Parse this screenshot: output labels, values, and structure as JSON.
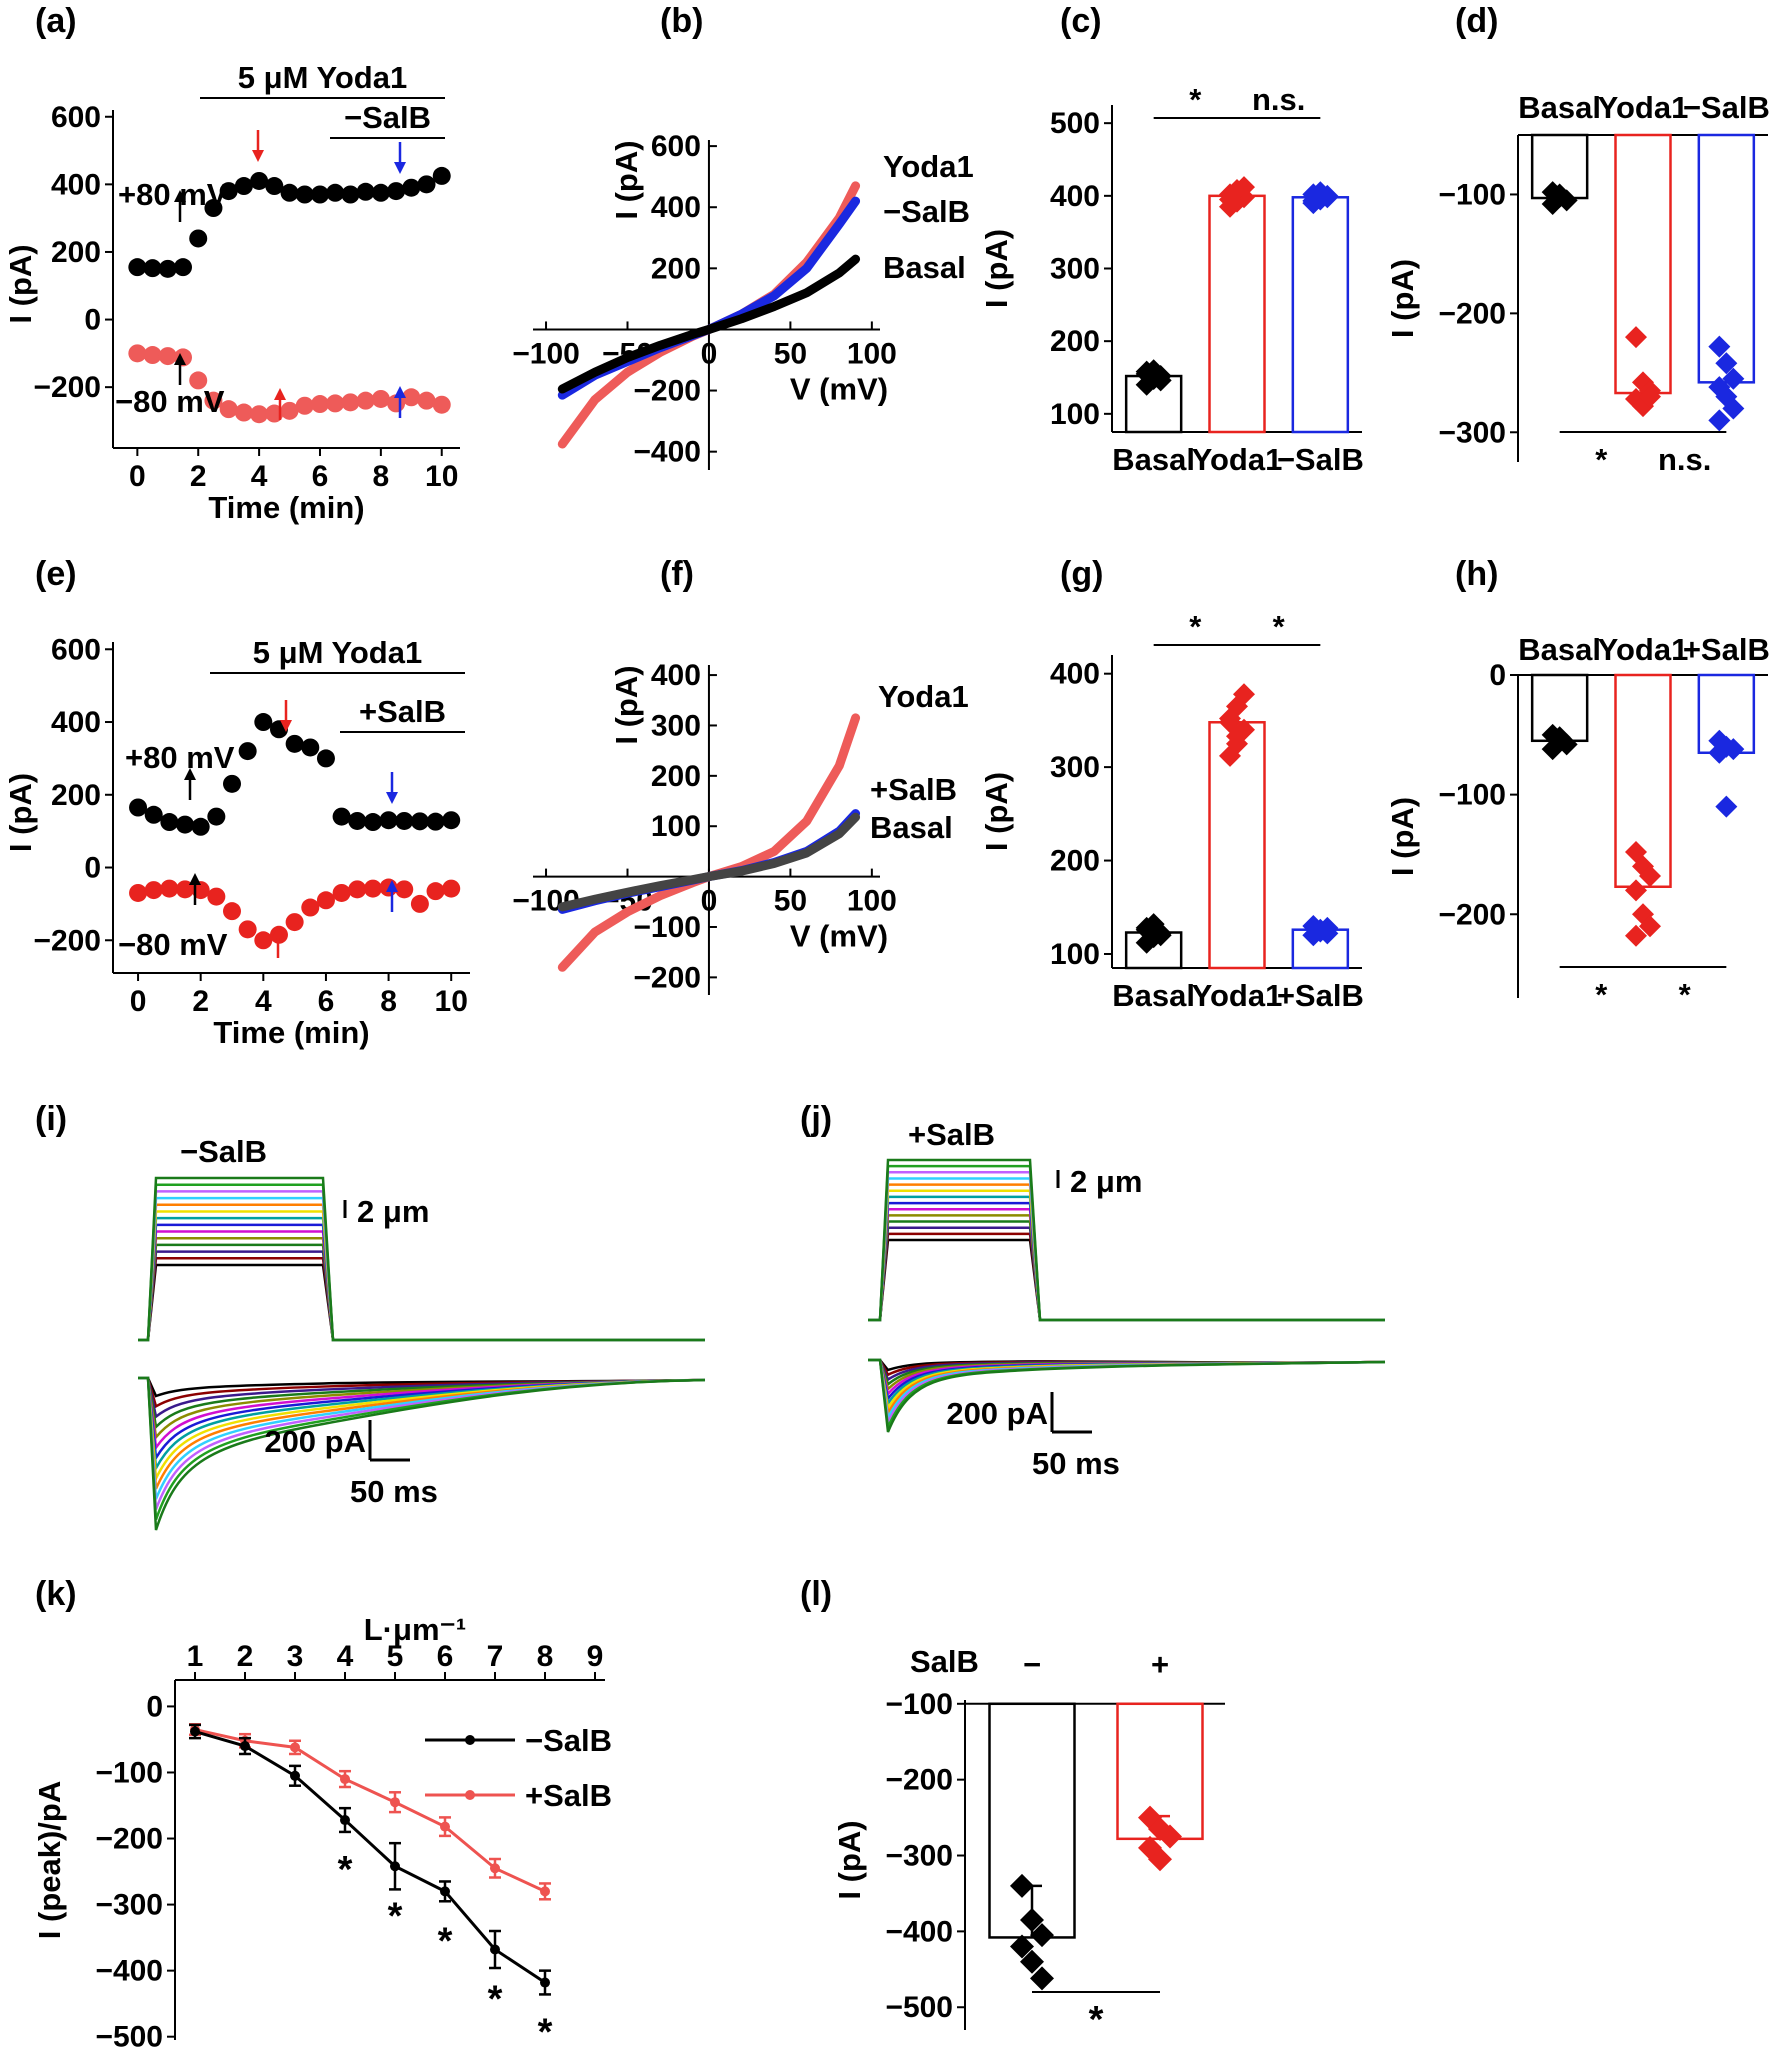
{
  "colors": {
    "basal": "#000000",
    "yoda1": "#e8231f",
    "yoda1_light": "#ee5b59",
    "salb": "#1a28e0",
    "minus_salb_line": "#000000",
    "plus_salb_line": "#ee5350"
  },
  "panels": {
    "a": "(a)",
    "b": "(b)",
    "c": "(c)",
    "d": "(d)",
    "e": "(e)",
    "f": "(f)",
    "g": "(g)",
    "h": "(h)",
    "i": "(i)",
    "j": "(j)",
    "k": "(k)",
    "l": "(l)"
  },
  "chart_data": [
    {
      "id": "a",
      "type": "scatter",
      "xlabel": "Time (min)",
      "ylabel": "I (pA)",
      "xlim": [
        -0.8,
        10.6
      ],
      "ylim": [
        -380,
        620
      ],
      "xticks": [
        0,
        2,
        4,
        6,
        8,
        10
      ],
      "yticks": [
        -200,
        0,
        200,
        400,
        600
      ],
      "annotations": {
        "drug": "5 μM  Yoda1",
        "salb": "−SalB",
        "pos": "+80 mV",
        "neg": "−80 mV"
      },
      "series": [
        {
          "name": "+80 mV",
          "color": "#000000",
          "x": [
            0,
            0.5,
            1,
            1.5,
            2,
            2.5,
            3,
            3.5,
            4,
            4.5,
            5,
            5.5,
            6,
            6.5,
            7,
            7.5,
            8,
            8.5,
            9,
            9.5,
            10
          ],
          "y": [
            155,
            152,
            150,
            155,
            240,
            330,
            380,
            395,
            410,
            395,
            375,
            370,
            370,
            375,
            370,
            378,
            375,
            380,
            390,
            400,
            425
          ]
        },
        {
          "name": "−80 mV",
          "color": "#ee5b59",
          "x": [
            0,
            0.5,
            1,
            1.5,
            2,
            2.5,
            3,
            3.5,
            4,
            4.5,
            5,
            5.5,
            6,
            6.5,
            7,
            7.5,
            8,
            8.5,
            9,
            9.5,
            10
          ],
          "y": [
            -100,
            -105,
            -108,
            -112,
            -180,
            -240,
            -265,
            -275,
            -280,
            -278,
            -270,
            -255,
            -250,
            -248,
            -245,
            -240,
            -235,
            -248,
            -230,
            -240,
            -252
          ]
        }
      ]
    },
    {
      "id": "b",
      "type": "line",
      "xlabel": "V (mV)",
      "ylabel": "I (pA)",
      "xlim": [
        -108,
        105
      ],
      "ylim": [
        -460,
        620
      ],
      "xticks": [
        -100,
        -50,
        0,
        50,
        100
      ],
      "yticks": [
        -400,
        -200,
        200,
        400,
        600
      ],
      "series": [
        {
          "name": "Yoda1",
          "color": "#ee5b59",
          "x": [
            -90,
            -70,
            -50,
            -30,
            -10,
            0,
            20,
            40,
            60,
            80,
            90
          ],
          "y": [
            -375,
            -230,
            -140,
            -75,
            -22,
            0,
            50,
            115,
            220,
            365,
            470
          ]
        },
        {
          "name": "−SalB",
          "color": "#1a28e0",
          "x": [
            -90,
            -70,
            -50,
            -30,
            -10,
            0,
            20,
            40,
            60,
            80,
            90
          ],
          "y": [
            -215,
            -150,
            -105,
            -60,
            -20,
            0,
            50,
            110,
            200,
            345,
            420
          ]
        },
        {
          "name": "Basal",
          "color": "#000000",
          "x": [
            -90,
            -70,
            -50,
            -30,
            -10,
            0,
            20,
            40,
            60,
            80,
            90
          ],
          "y": [
            -195,
            -140,
            -92,
            -52,
            -16,
            0,
            35,
            75,
            120,
            185,
            230
          ]
        }
      ]
    },
    {
      "id": "c",
      "type": "bar",
      "categories": [
        "Basal",
        "Yoda1",
        "−SalB"
      ],
      "values": [
        152,
        400,
        398
      ],
      "points": [
        [
          140,
          148,
          152,
          155,
          160,
          146,
          158
        ],
        [
          385,
          392,
          398,
          402,
          408,
          412,
          395
        ],
        [
          390,
          395,
          398,
          402,
          405,
          400,
          393
        ]
      ],
      "ylabel": "I (pA)",
      "ylim": [
        75,
        525
      ],
      "yticks": [
        100,
        200,
        300,
        400,
        500
      ],
      "significance": [
        "*",
        "n.s."
      ]
    },
    {
      "id": "d",
      "type": "bar",
      "categories": [
        "Basal",
        "Yoda1",
        "−SalB"
      ],
      "values": [
        -103,
        -267,
        -258
      ],
      "points": [
        [
          -98,
          -102,
          -105,
          -108,
          -100
        ],
        [
          -220,
          -258,
          -265,
          -272,
          -278,
          -270
        ],
        [
          -228,
          -242,
          -255,
          -262,
          -270,
          -280,
          -290
        ]
      ],
      "ylabel": "I (pA)",
      "ylim": [
        -325,
        -50
      ],
      "yticks": [
        -100,
        -200,
        -300
      ],
      "significance": [
        "*",
        "n.s."
      ]
    },
    {
      "id": "e",
      "type": "scatter",
      "xlabel": "Time (min)",
      "ylabel": "I (pA)",
      "xlim": [
        -0.8,
        10.6
      ],
      "ylim": [
        -290,
        620
      ],
      "xticks": [
        0,
        2,
        4,
        6,
        8,
        10
      ],
      "yticks": [
        -200,
        0,
        200,
        400,
        600
      ],
      "annotations": {
        "drug": "5 μM Yoda1",
        "salb": "+SalB",
        "pos": "+80 mV",
        "neg": "−80 mV"
      },
      "series": [
        {
          "name": "+80 mV",
          "color": "#000000",
          "x": [
            0,
            0.5,
            1,
            1.5,
            2,
            2.5,
            3,
            3.5,
            4,
            4.5,
            5,
            5.5,
            6,
            6.5,
            7,
            7.5,
            8,
            8.5,
            9,
            9.5,
            10
          ],
          "y": [
            165,
            145,
            125,
            118,
            112,
            140,
            230,
            320,
            400,
            380,
            340,
            330,
            300,
            140,
            128,
            125,
            130,
            128,
            127,
            126,
            130
          ]
        },
        {
          "name": "−80 mV",
          "color": "#e8231f",
          "x": [
            0,
            0.5,
            1,
            1.5,
            2,
            2.5,
            3,
            3.5,
            4,
            4.5,
            5,
            5.5,
            6,
            6.5,
            7,
            7.5,
            8,
            8.5,
            9,
            9.5,
            10
          ],
          "y": [
            -70,
            -62,
            -58,
            -60,
            -62,
            -80,
            -120,
            -170,
            -200,
            -185,
            -150,
            -110,
            -90,
            -70,
            -60,
            -58,
            -55,
            -60,
            -100,
            -65,
            -58
          ]
        }
      ]
    },
    {
      "id": "f",
      "type": "line",
      "xlabel": "V (mV)",
      "ylabel": "I (pA)",
      "xlim": [
        -108,
        105
      ],
      "ylim": [
        -235,
        420
      ],
      "xticks": [
        -100,
        -50,
        0,
        50,
        100
      ],
      "yticks": [
        -200,
        -100,
        100,
        200,
        300,
        400
      ],
      "series": [
        {
          "name": "Yoda1",
          "color": "#ee5b59",
          "x": [
            -90,
            -70,
            -50,
            -30,
            -10,
            0,
            20,
            40,
            60,
            80,
            90
          ],
          "y": [
            -180,
            -110,
            -70,
            -38,
            -12,
            0,
            20,
            50,
            110,
            220,
            315
          ]
        },
        {
          "name": "+SalB",
          "color": "#1a28e0",
          "x": [
            -90,
            -70,
            -50,
            -30,
            -10,
            0,
            20,
            40,
            60,
            80,
            90
          ],
          "y": [
            -65,
            -48,
            -33,
            -20,
            -7,
            0,
            12,
            28,
            50,
            90,
            125
          ]
        },
        {
          "name": "Basal",
          "color": "#444444",
          "x": [
            -90,
            -70,
            -50,
            -30,
            -10,
            0,
            20,
            40,
            60,
            80,
            90
          ],
          "y": [
            -60,
            -45,
            -31,
            -18,
            -6,
            0,
            11,
            26,
            47,
            85,
            118
          ]
        }
      ]
    },
    {
      "id": "g",
      "type": "bar",
      "categories": [
        "Basal",
        "Yoda1",
        "+SalB"
      ],
      "values": [
        123,
        348,
        126
      ],
      "points": [
        [
          112,
          118,
          122,
          128,
          132,
          120,
          126
        ],
        [
          312,
          325,
          340,
          352,
          365,
          378,
          348,
          333
        ],
        [
          120,
          124,
          128,
          130,
          126,
          122
        ]
      ],
      "ylabel": "I (pA)",
      "ylim": [
        85,
        420
      ],
      "yticks": [
        100,
        200,
        300,
        400
      ],
      "significance": [
        "*",
        "*"
      ]
    },
    {
      "id": "h",
      "type": "bar",
      "categories": [
        "Basal",
        "Yoda1",
        "+SalB"
      ],
      "values": [
        -55,
        -177,
        -65
      ],
      "points": [
        [
          -50,
          -55,
          -58,
          -62,
          -52
        ],
        [
          -148,
          -160,
          -168,
          -180,
          -200,
          -210,
          -218
        ],
        [
          -55,
          -60,
          -62,
          -65,
          -110
        ]
      ],
      "ylabel": "I (pA)",
      "ylim": [
        -270,
        0
      ],
      "yticks": [
        0,
        -100,
        -200
      ],
      "significance": [
        "*",
        "*"
      ]
    },
    {
      "id": "k",
      "type": "line",
      "title": "L·μm⁻¹",
      "ylabel": "I (peak)/pA",
      "xlim": [
        0.6,
        9.2
      ],
      "ylim": [
        -505,
        40
      ],
      "xticks": [
        1,
        2,
        3,
        4,
        5,
        6,
        7,
        8,
        9
      ],
      "yticks": [
        0,
        -100,
        -200,
        -300,
        -400,
        -500
      ],
      "significance": [
        "*",
        "*",
        "*",
        "*",
        "*"
      ],
      "series": [
        {
          "name": "−SalB",
          "color": "#000000",
          "x": [
            1,
            2,
            3,
            4,
            5,
            6,
            7,
            8
          ],
          "y": [
            -38,
            -60,
            -105,
            -172,
            -242,
            -280,
            -368,
            -418
          ],
          "err": [
            10,
            12,
            15,
            18,
            35,
            15,
            28,
            18
          ]
        },
        {
          "name": "+SalB",
          "color": "#ee5350",
          "x": [
            1,
            2,
            3,
            4,
            5,
            6,
            7,
            8
          ],
          "y": [
            -35,
            -52,
            -62,
            -110,
            -145,
            -182,
            -245,
            -280
          ],
          "err": [
            8,
            10,
            10,
            12,
            15,
            14,
            14,
            12
          ]
        }
      ]
    },
    {
      "id": "l",
      "type": "bar",
      "categories": [
        "−",
        "+"
      ],
      "category_title": "SalB",
      "values": [
        -408,
        -278
      ],
      "points": [
        [
          -340,
          -385,
          -405,
          -420,
          -440,
          -462
        ],
        [
          -250,
          -265,
          -275,
          -290,
          -305
        ]
      ],
      "error": [
        68,
        30
      ],
      "ylabel": "I (pA)",
      "ylim": [
        -530,
        -95
      ],
      "yticks": [
        -100,
        -200,
        -300,
        -400,
        -500
      ],
      "significance": [
        "*"
      ]
    }
  ],
  "traces": {
    "i": {
      "label": "−SalB",
      "scale_distance": "2 μm",
      "scale_current": "200 pA",
      "scale_time": "50 ms"
    },
    "j": {
      "label": "+SalB",
      "scale_distance": "2 μm",
      "scale_current": "200 pA",
      "scale_time": "50 ms"
    },
    "step_colors": [
      "#000000",
      "#8b0000",
      "#3a1a8c",
      "#1a7a1a",
      "#8c8c00",
      "#d10fd1",
      "#1a1ad6",
      "#00a0a0",
      "#f0e000",
      "#ff7f00",
      "#30d0ff",
      "#c060ff",
      "#20a020",
      "#1a7a1a"
    ]
  }
}
